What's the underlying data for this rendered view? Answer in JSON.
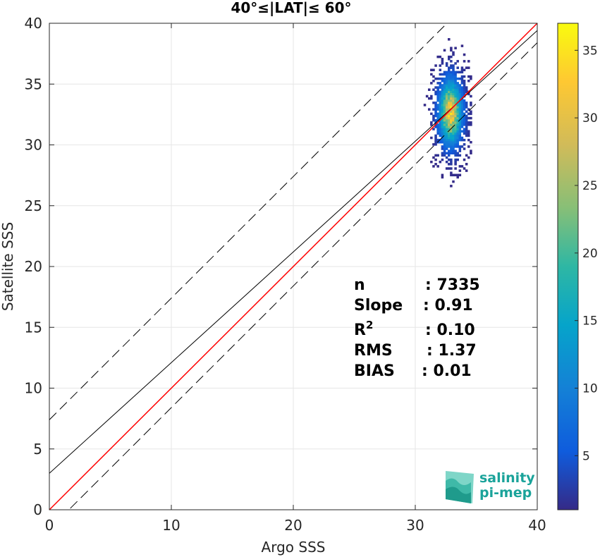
{
  "chart_data": {
    "type": "heatmap",
    "title": "40°≤|LAT|≤ 60°",
    "xlabel": "Argo SSS",
    "ylabel": "Satellite SSS",
    "xlim": [
      0,
      40
    ],
    "ylim": [
      0,
      40
    ],
    "xticks": [
      0,
      10,
      20,
      30,
      40
    ],
    "yticks": [
      0,
      5,
      10,
      15,
      20,
      25,
      30,
      35,
      40
    ],
    "grid": true,
    "colorbar": {
      "min": 1,
      "max": 37,
      "ticks": [
        5,
        10,
        15,
        20,
        25,
        30,
        35
      ],
      "colormap": "parula"
    },
    "density": {
      "center_x": 32.8,
      "center_y": 32.6,
      "x_range": [
        30.5,
        34.6
      ],
      "y_range": [
        26.0,
        39.3
      ],
      "peak_count": 37,
      "n": 7335
    },
    "lines": {
      "one_to_one": {
        "slope": 1,
        "intercept": 0,
        "color": "#ff0000",
        "style": "solid"
      },
      "fit": {
        "slope": 0.91,
        "intercept": 3.0,
        "color": "#000000",
        "style": "solid"
      },
      "upper_band": {
        "slope": 1,
        "intercept": 7.4,
        "color": "#000000",
        "style": "dashed"
      },
      "lower_band": {
        "slope": 1,
        "intercept": -1.6,
        "color": "#000000",
        "style": "dashed"
      }
    },
    "stats": [
      {
        "label": "n",
        "value": ": 7335"
      },
      {
        "label": "Slope",
        "value": ": 0.91"
      },
      {
        "label": "R",
        "sup": "2",
        "value": ": 0.10"
      },
      {
        "label": "RMS",
        "value": ": 1.37"
      },
      {
        "label": "BIAS",
        "value": ": 0.01"
      }
    ]
  },
  "logo": {
    "line1": "salinity",
    "line2": "pi-mep"
  }
}
